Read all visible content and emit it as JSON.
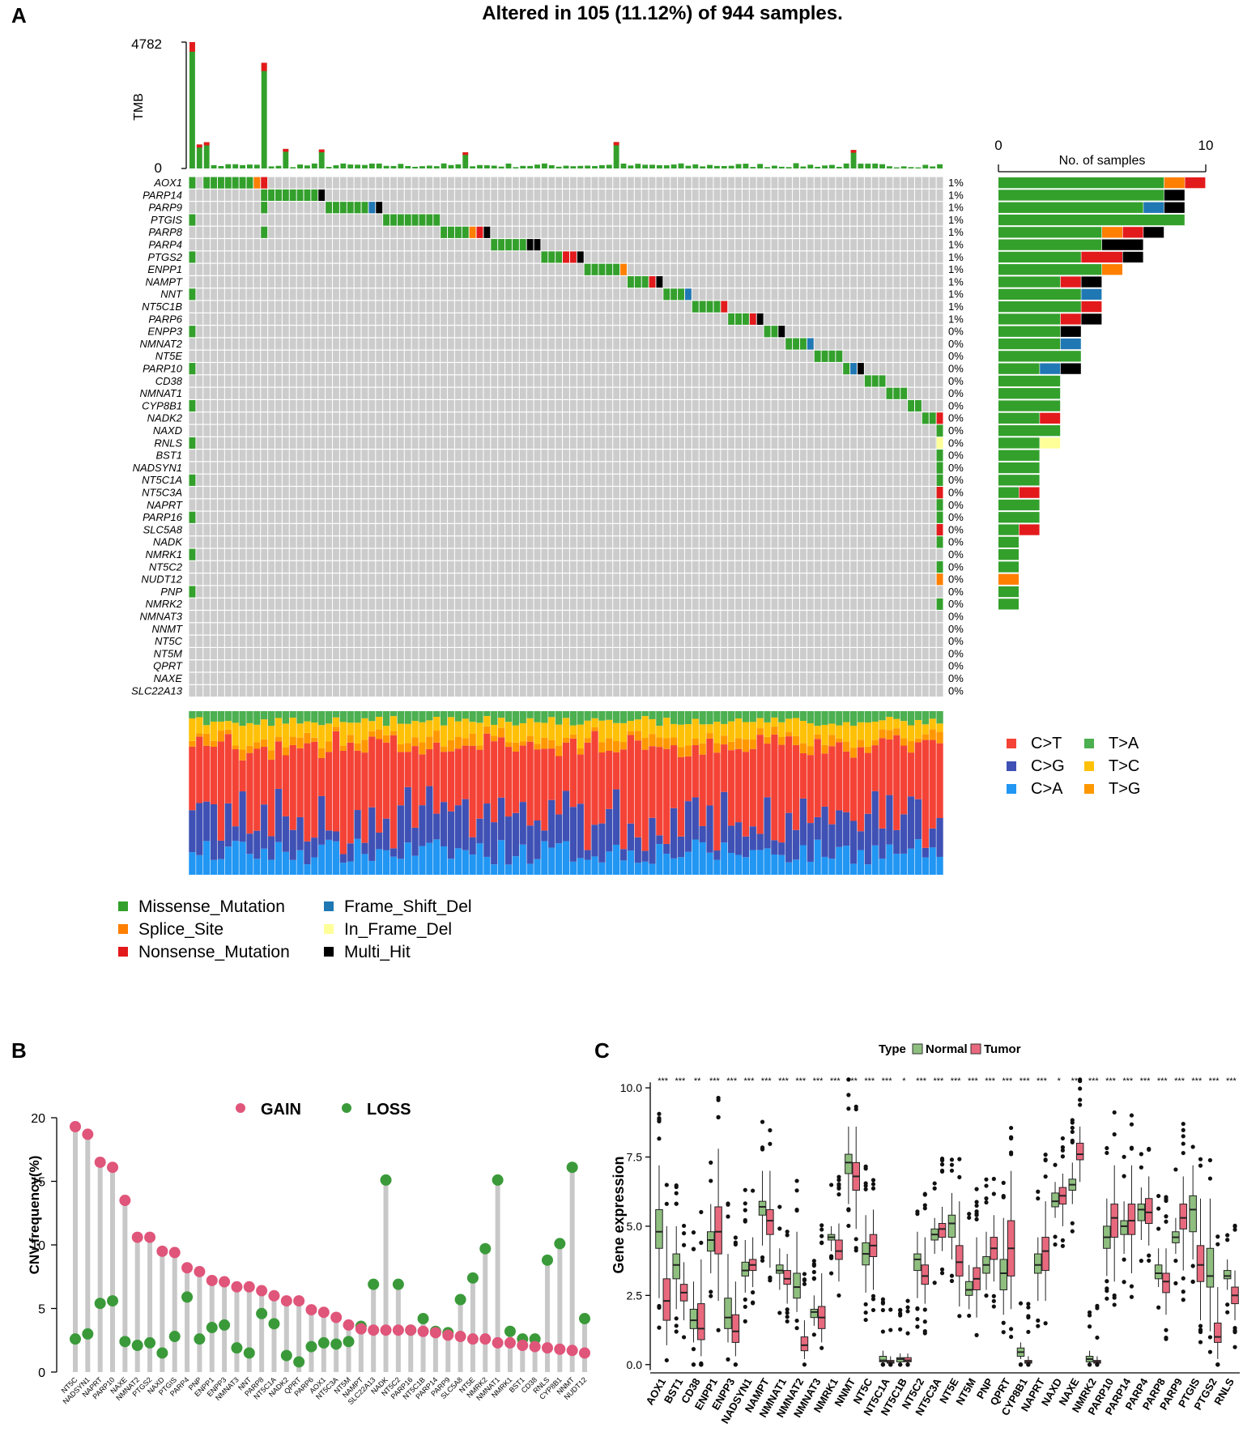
{
  "panelA": {
    "label": "A",
    "title": "Altered in 105 (11.12%) of 944 samples.",
    "tmb_label": "TMB",
    "tmb_max": "4782",
    "tmb_min": "0",
    "tmb_range": [
      0,
      4782
    ],
    "side_axis_label": "No. of samples",
    "side_ticks": [
      "0",
      "10"
    ],
    "side_range": [
      0,
      10
    ],
    "genes": [
      "AOX1",
      "PARP14",
      "PARP9",
      "PTGIS",
      "PARP8",
      "PARP4",
      "PTGS2",
      "ENPP1",
      "NAMPT",
      "NNT",
      "NT5C1B",
      "PARP6",
      "ENPP3",
      "NMNAT2",
      "NT5E",
      "PARP10",
      "CD38",
      "NMNAT1",
      "CYP8B1",
      "NADK2",
      "NAXD",
      "RNLS",
      "BST1",
      "NADSYN1",
      "NT5C1A",
      "NT5C3A",
      "NAPRT",
      "PARP16",
      "SLC5A8",
      "NADK",
      "NMRK1",
      "NT5C2",
      "NUDT12",
      "PNP",
      "NMRK2",
      "NMNAT3",
      "NNMT",
      "NT5C",
      "NT5M",
      "QPRT",
      "NAXE",
      "SLC22A13"
    ],
    "percents": [
      "1%",
      "1%",
      "1%",
      "1%",
      "1%",
      "1%",
      "1%",
      "1%",
      "1%",
      "1%",
      "1%",
      "1%",
      "0%",
      "0%",
      "0%",
      "0%",
      "0%",
      "0%",
      "0%",
      "0%",
      "0%",
      "0%",
      "0%",
      "0%",
      "0%",
      "0%",
      "0%",
      "0%",
      "0%",
      "0%",
      "0%",
      "0%",
      "0%",
      "0%",
      "0%",
      "0%",
      "0%",
      "0%",
      "0%",
      "0%",
      "0%",
      "0%"
    ],
    "side_counts": [
      {
        "Missense_Mutation": 8,
        "Splice_Site": 1,
        "Nonsense_Mutation": 1
      },
      {
        "Missense_Mutation": 8,
        "Multi_Hit": 1
      },
      {
        "Missense_Mutation": 7,
        "Frame_Shift_Del": 1,
        "Multi_Hit": 1
      },
      {
        "Missense_Mutation": 9
      },
      {
        "Missense_Mutation": 5,
        "Splice_Site": 1,
        "Nonsense_Mutation": 1,
        "Multi_Hit": 1
      },
      {
        "Missense_Mutation": 5,
        "Multi_Hit": 2
      },
      {
        "Missense_Mutation": 4,
        "Nonsense_Mutation": 2,
        "Multi_Hit": 1
      },
      {
        "Missense_Mutation": 5,
        "Splice_Site": 1
      },
      {
        "Missense_Mutation": 3,
        "Nonsense_Mutation": 1,
        "Multi_Hit": 1
      },
      {
        "Missense_Mutation": 4,
        "Frame_Shift_Del": 1
      },
      {
        "Missense_Mutation": 4,
        "Nonsense_Mutation": 1
      },
      {
        "Missense_Mutation": 3,
        "Nonsense_Mutation": 1,
        "Multi_Hit": 1
      },
      {
        "Missense_Mutation": 3,
        "Multi_Hit": 1
      },
      {
        "Missense_Mutation": 3,
        "Frame_Shift_Del": 1
      },
      {
        "Missense_Mutation": 4
      },
      {
        "Missense_Mutation": 2,
        "Frame_Shift_Del": 1,
        "Multi_Hit": 1
      },
      {
        "Missense_Mutation": 3
      },
      {
        "Missense_Mutation": 3
      },
      {
        "Missense_Mutation": 3
      },
      {
        "Missense_Mutation": 2,
        "Nonsense_Mutation": 1
      },
      {
        "Missense_Mutation": 3
      },
      {
        "Missense_Mutation": 2,
        "In_Frame_Del": 1
      },
      {
        "Missense_Mutation": 2
      },
      {
        "Missense_Mutation": 2
      },
      {
        "Missense_Mutation": 2
      },
      {
        "Missense_Mutation": 1,
        "Nonsense_Mutation": 1
      },
      {
        "Missense_Mutation": 2
      },
      {
        "Missense_Mutation": 2
      },
      {
        "Missense_Mutation": 1,
        "Nonsense_Mutation": 1
      },
      {
        "Missense_Mutation": 1
      },
      {
        "Missense_Mutation": 1
      },
      {
        "Missense_Mutation": 1
      },
      {
        "Splice_Site": 1
      },
      {
        "Missense_Mutation": 1
      },
      {
        "Missense_Mutation": 1
      },
      {},
      {},
      {},
      {},
      {},
      {},
      {}
    ],
    "variant_legend": [
      "Missense_Mutation",
      "Splice_Site",
      "Nonsense_Mutation",
      "Frame_Shift_Del",
      "In_Frame_Del",
      "Multi_Hit"
    ],
    "variant_colors": {
      "Missense_Mutation": "#33a02c",
      "Splice_Site": "#ff7f00",
      "Nonsense_Mutation": "#e31a1c",
      "Frame_Shift_Del": "#1f78b4",
      "In_Frame_Del": "#ffff99",
      "Multi_Hit": "#000000"
    },
    "titv_legend": [
      "C>T",
      "C>G",
      "C>A",
      "T>A",
      "T>C",
      "T>G"
    ],
    "titv_colors": {
      "C>T": "#f44336",
      "C>G": "#3f51b5",
      "C>A": "#2196f3",
      "T>A": "#4caf50",
      "T>C": "#ffc107",
      "T>G": "#ff9800"
    },
    "n_samples_shown": 105
  },
  "panelB": {
    "label": "B",
    "chart_data": {
      "type": "lollipop",
      "ylabel": "CNV.frequency(%)",
      "ylim": [
        0,
        20
      ],
      "yticks": [
        "0",
        "5",
        "10",
        "15",
        "20"
      ],
      "legend": [
        "GAIN",
        "LOSS"
      ],
      "colors": {
        "GAIN": "#e0557a",
        "LOSS": "#3a9a3a"
      },
      "categories": [
        "NT5C",
        "NADSYN1",
        "NAPRT",
        "PARP10",
        "NAXE",
        "NMNAT2",
        "PTGS2",
        "NAXD",
        "PTGIS",
        "PARP4",
        "PNP",
        "ENPP1",
        "ENPP3",
        "NMNAT3",
        "NNT",
        "PARP8",
        "NT5C1A",
        "NADK2",
        "QPRT",
        "PARP6",
        "AOX1",
        "NT5C3A",
        "NT5M",
        "NAMPT",
        "SLC22A13",
        "NADK",
        "NT5C2",
        "PARP16",
        "NT5C1B",
        "PARP14",
        "PARP9",
        "SLC5A8",
        "NT5E",
        "NMRK2",
        "NMNAT1",
        "NMRK1",
        "BST1",
        "CD38",
        "RNLS",
        "CYP8B1",
        "NNMT",
        "NUDT12"
      ],
      "gain": [
        19.3,
        18.7,
        16.5,
        16.1,
        13.5,
        10.6,
        10.6,
        9.5,
        9.4,
        8.2,
        7.9,
        7.2,
        7.1,
        6.7,
        6.7,
        6.4,
        6.0,
        5.6,
        5.6,
        4.9,
        4.7,
        4.3,
        3.7,
        3.4,
        3.3,
        3.3,
        3.3,
        3.3,
        3.2,
        3.1,
        2.9,
        2.8,
        2.6,
        2.6,
        2.3,
        2.3,
        2.1,
        2.0,
        1.9,
        1.8,
        1.7,
        1.5
      ],
      "loss": [
        2.6,
        3.0,
        5.4,
        5.6,
        2.4,
        2.1,
        2.3,
        1.5,
        2.8,
        5.9,
        2.6,
        3.5,
        3.7,
        1.9,
        1.5,
        4.6,
        3.8,
        1.3,
        0.8,
        2.0,
        2.3,
        2.2,
        2.4,
        3.6,
        6.9,
        15.1,
        6.9,
        3.3,
        4.2,
        3.2,
        3.1,
        5.7,
        7.4,
        9.7,
        15.1,
        3.2,
        2.6,
        2.6,
        8.8,
        10.1,
        16.1,
        4.2
      ]
    }
  },
  "panelC": {
    "label": "C",
    "chart_data": {
      "type": "boxplot",
      "ylabel": "Gene expression",
      "ylim": [
        0,
        10.5
      ],
      "yticks": [
        "0.0",
        "2.5",
        "5.0",
        "7.5",
        "10.0"
      ],
      "legend_title": "Type",
      "legend": [
        "Normal",
        "Tumor"
      ],
      "colors": {
        "Normal": "#8fbf7f",
        "Tumor": "#e8697d"
      },
      "categories": [
        "AOX1",
        "BST1",
        "CD38",
        "ENPP1",
        "ENPP3",
        "NADSYN1",
        "NAMPT",
        "NMNAT1",
        "NMNAT2",
        "NMNAT3",
        "NMRK1",
        "NNMT",
        "NT5C",
        "NT5C1A",
        "NT5C1B",
        "NT5C2",
        "NT5C3A",
        "NT5E",
        "NT5M",
        "PNP",
        "QPRT",
        "CYP8B1",
        "NAPRT",
        "NAXD",
        "NAXE",
        "NMRK2",
        "PARP10",
        "PARP14",
        "PARP4",
        "PARP8",
        "PARP9",
        "PTGIS",
        "PTGS2",
        "RNLS"
      ],
      "significance": [
        "***",
        "***",
        "**",
        "***",
        "***",
        "***",
        "***",
        "***",
        "***",
        "***",
        "***",
        "***",
        "***",
        "***",
        "*",
        "***",
        "***",
        "***",
        "***",
        "***",
        "***",
        "***",
        "***",
        "*",
        "***",
        "***",
        "***",
        "***",
        "***",
        "***",
        "***",
        "***",
        "***",
        "***"
      ],
      "normal": [
        [
          2.4,
          4.2,
          4.8,
          5.6,
          7.2
        ],
        [
          2.0,
          3.1,
          3.6,
          4.0,
          5.0
        ],
        [
          0.8,
          1.3,
          1.6,
          2.0,
          3.0
        ],
        [
          3.3,
          4.1,
          4.5,
          4.8,
          5.8
        ],
        [
          0.8,
          1.3,
          1.7,
          2.4,
          4.0
        ],
        [
          2.6,
          3.2,
          3.4,
          3.7,
          4.5
        ],
        [
          4.3,
          5.4,
          5.7,
          5.9,
          7.0
        ],
        [
          2.7,
          3.3,
          3.4,
          3.6,
          4.2
        ],
        [
          1.9,
          2.4,
          2.8,
          3.3,
          4.8
        ],
        [
          1.4,
          1.7,
          1.9,
          2.0,
          2.5
        ],
        [
          4.1,
          4.5,
          4.6,
          4.7,
          5.0
        ],
        [
          5.8,
          6.9,
          7.3,
          7.6,
          8.6
        ],
        [
          2.6,
          3.6,
          4.0,
          4.4,
          5.4
        ],
        [
          0.0,
          0.1,
          0.15,
          0.3,
          0.5
        ],
        [
          0.0,
          0.1,
          0.2,
          0.25,
          0.4
        ],
        [
          2.4,
          3.4,
          3.8,
          4.0,
          4.8
        ],
        [
          4.0,
          4.5,
          4.7,
          4.9,
          5.3
        ],
        [
          3.8,
          4.6,
          5.1,
          5.4,
          6.2
        ],
        [
          2.0,
          2.5,
          2.7,
          3.0,
          3.6
        ],
        [
          2.7,
          3.3,
          3.6,
          3.9,
          4.8
        ],
        [
          1.8,
          2.7,
          3.3,
          3.8,
          5.3
        ],
        [
          0.2,
          0.3,
          0.45,
          0.6,
          0.8
        ],
        [
          2.3,
          3.3,
          3.6,
          4.0,
          4.6
        ],
        [
          5.3,
          5.7,
          5.9,
          6.2,
          6.6
        ],
        [
          5.8,
          6.3,
          6.5,
          6.7,
          7.3
        ],
        [
          0.0,
          0.1,
          0.2,
          0.3,
          0.5
        ],
        [
          3.2,
          4.2,
          4.6,
          5.0,
          6.0
        ],
        [
          4.0,
          4.7,
          5.0,
          5.2,
          5.9
        ],
        [
          4.5,
          5.2,
          5.6,
          5.8,
          6.4
        ],
        [
          2.8,
          3.1,
          3.3,
          3.6,
          4.2
        ],
        [
          4.0,
          4.4,
          4.6,
          4.8,
          5.3
        ],
        [
          3.8,
          4.8,
          5.6,
          6.1,
          7.2
        ],
        [
          1.2,
          2.8,
          3.2,
          4.2,
          6.0
        ],
        [
          2.7,
          3.1,
          3.2,
          3.4,
          3.8
        ]
      ],
      "tumor": [
        [
          0.7,
          1.6,
          2.3,
          3.1,
          5.0
        ],
        [
          1.6,
          2.3,
          2.6,
          2.9,
          3.7
        ],
        [
          0.3,
          0.9,
          1.3,
          2.2,
          3.8
        ],
        [
          2.3,
          4.0,
          4.8,
          5.7,
          7.8
        ],
        [
          0.3,
          0.8,
          1.2,
          1.8,
          3.0
        ],
        [
          2.8,
          3.4,
          3.6,
          3.8,
          4.6
        ],
        [
          3.5,
          4.7,
          5.2,
          5.6,
          7.0
        ],
        [
          2.2,
          2.9,
          3.1,
          3.4,
          4.0
        ],
        [
          0.2,
          0.5,
          0.7,
          1.0,
          1.6
        ],
        [
          0.8,
          1.3,
          1.7,
          2.1,
          3.3
        ],
        [
          3.0,
          3.8,
          4.1,
          4.5,
          5.1
        ],
        [
          4.9,
          6.3,
          6.8,
          7.3,
          8.6
        ],
        [
          2.7,
          3.9,
          4.3,
          4.7,
          5.6
        ],
        [
          0.0,
          0.05,
          0.1,
          0.15,
          0.3
        ],
        [
          0.0,
          0.1,
          0.15,
          0.25,
          0.4
        ],
        [
          2.2,
          2.9,
          3.2,
          3.6,
          4.6
        ],
        [
          4.1,
          4.6,
          4.9,
          5.1,
          5.7
        ],
        [
          2.1,
          3.2,
          3.7,
          4.3,
          5.9
        ],
        [
          1.7,
          2.7,
          3.1,
          3.5,
          4.6
        ],
        [
          3.0,
          3.8,
          4.2,
          4.6,
          5.4
        ],
        [
          2.0,
          3.2,
          4.2,
          5.2,
          7.0
        ],
        [
          0.0,
          0.05,
          0.1,
          0.15,
          0.3
        ],
        [
          2.3,
          3.4,
          4.1,
          4.6,
          5.9
        ],
        [
          5.0,
          5.8,
          6.1,
          6.4,
          6.9
        ],
        [
          6.6,
          7.4,
          7.6,
          8.0,
          8.6
        ],
        [
          0.0,
          0.05,
          0.1,
          0.15,
          0.3
        ],
        [
          3.0,
          4.6,
          5.3,
          5.8,
          7.2
        ],
        [
          3.3,
          4.7,
          5.2,
          5.8,
          7.2
        ],
        [
          4.3,
          5.1,
          5.5,
          6.0,
          6.8
        ],
        [
          1.8,
          2.6,
          3.0,
          3.3,
          4.2
        ],
        [
          3.4,
          4.9,
          5.3,
          5.8,
          6.8
        ],
        [
          1.6,
          3.0,
          3.6,
          4.3,
          6.0
        ],
        [
          0.2,
          0.8,
          1.0,
          1.5,
          2.8
        ],
        [
          1.6,
          2.2,
          2.5,
          2.8,
          3.4
        ]
      ]
    }
  }
}
